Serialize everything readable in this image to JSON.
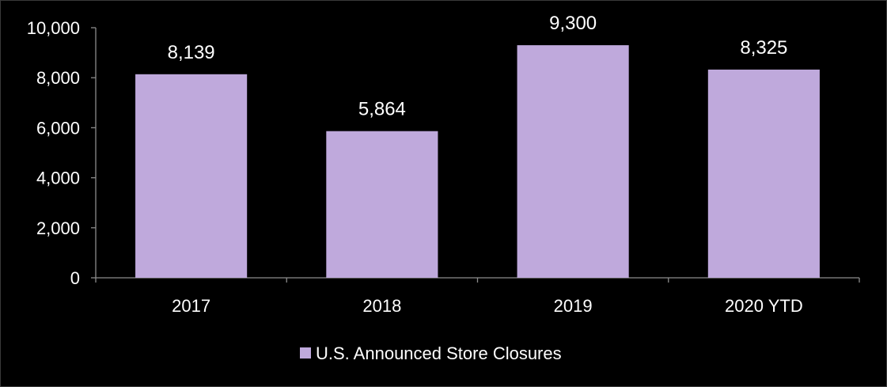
{
  "chart_data": {
    "type": "bar",
    "categories": [
      "2017",
      "2018",
      "2019",
      "2020 YTD"
    ],
    "series": [
      {
        "name": "U.S. Announced Store Closures",
        "values": [
          8139,
          5864,
          9300,
          8325
        ],
        "data_labels": [
          "8,139",
          "5,864",
          "9,300",
          "8,325"
        ],
        "color": "#bfa9dc"
      }
    ],
    "ylim": [
      0,
      10000
    ],
    "yticks": [
      0,
      2000,
      4000,
      6000,
      8000,
      10000
    ],
    "ytick_labels": [
      "0",
      "2,000",
      "4,000",
      "6,000",
      "8,000",
      "10,000"
    ],
    "grid": false,
    "legend_position": "bottom-center",
    "colors": {
      "background": "#000000",
      "axis": "#8c8c8c",
      "text": "#ffffff"
    }
  }
}
